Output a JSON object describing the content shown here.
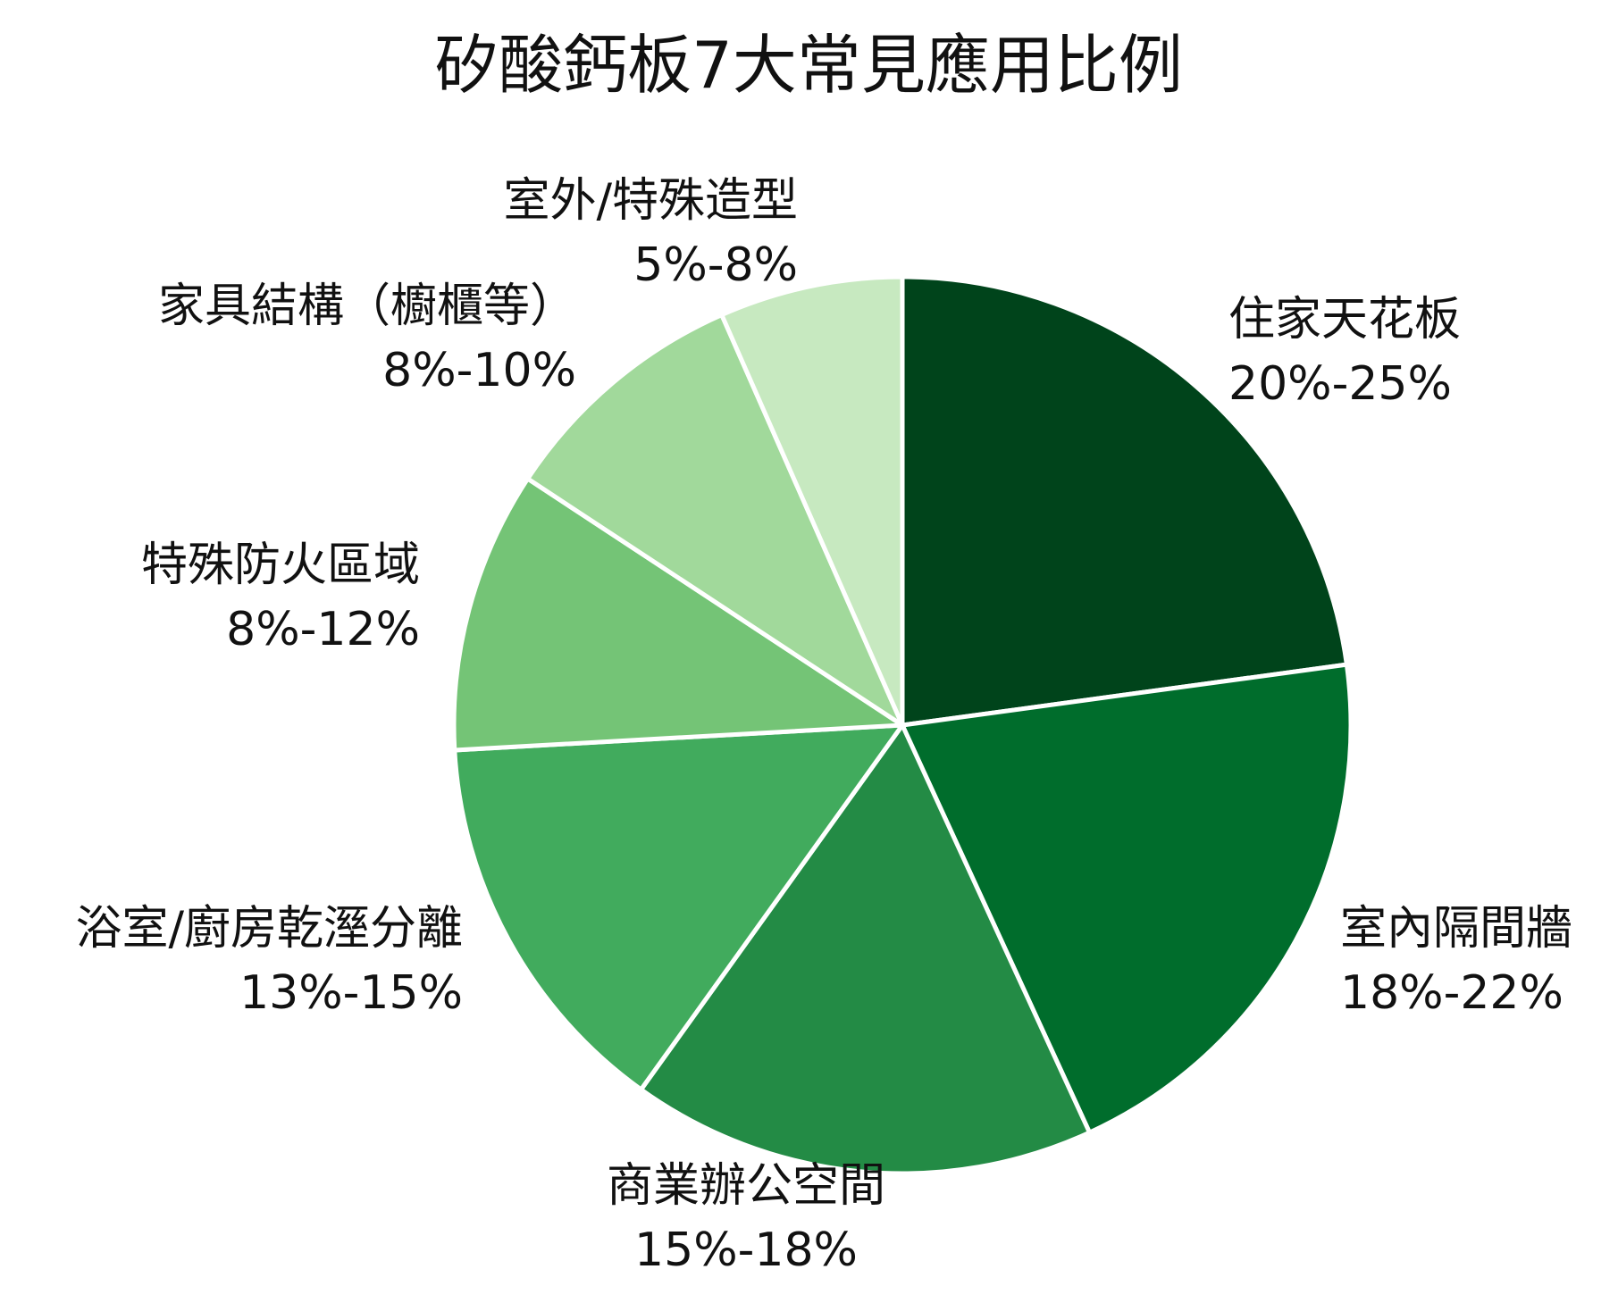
{
  "chart_data": {
    "type": "pie",
    "title": "矽酸鈣板7大常見應用比例",
    "start_angle_deg": 0,
    "direction": "clockwise",
    "slices": [
      {
        "name": "住家天花板",
        "range": "20%-25%",
        "value": 22.5,
        "color": "#00441b"
      },
      {
        "name": "室內隔間牆",
        "range": "18%-22%",
        "value": 20,
        "color": "#006d2c"
      },
      {
        "name": "商業辦公空間",
        "range": "15%-18%",
        "value": 16.5,
        "color": "#238b45"
      },
      {
        "name": "浴室/廚房乾溼分離",
        "range": "13%-15%",
        "value": 14,
        "color": "#41ab5d"
      },
      {
        "name": "特殊防火區域",
        "range": "8%-12%",
        "value": 10,
        "color": "#74c476"
      },
      {
        "name": "家具結構（櫥櫃等）",
        "range": "8%-10%",
        "value": 9,
        "color": "#a1d99b"
      },
      {
        "name": "室外/特殊造型",
        "range": "5%-8%",
        "value": 6.5,
        "color": "#c7e9c0"
      }
    ],
    "slice_border_color": "#ffffff"
  }
}
